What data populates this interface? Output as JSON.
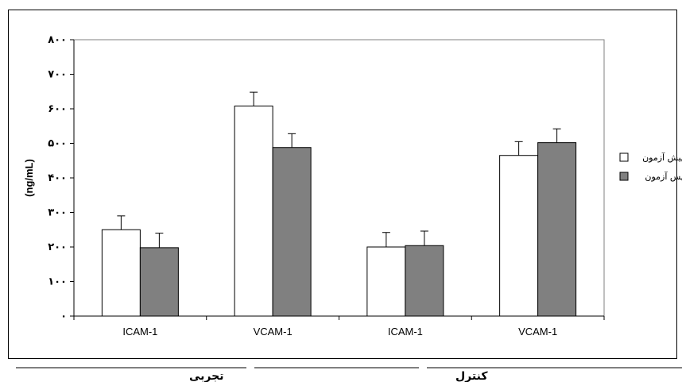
{
  "chart_data": {
    "type": "bar",
    "categories": [
      "ICAM-1",
      "VCAM-1",
      "ICAM-1",
      "VCAM-1"
    ],
    "groups": [
      {
        "label": "تجربی",
        "categories": [
          0,
          1
        ]
      },
      {
        "label": "کنترل",
        "categories": [
          2,
          3
        ]
      }
    ],
    "series": [
      {
        "name": "پیش آزمون",
        "values": [
          250,
          608,
          200,
          465
        ],
        "errors": [
          40,
          40,
          42,
          40
        ],
        "color": "#ffffff"
      },
      {
        "name": "پس آزمون",
        "values": [
          198,
          488,
          204,
          502
        ],
        "errors": [
          42,
          40,
          42,
          40
        ],
        "color": "#808080"
      }
    ],
    "ylabel": "(ng/mL)",
    "ylim": [
      0,
      800
    ],
    "yticks": [
      0,
      100,
      200,
      300,
      400,
      500,
      600,
      700,
      800
    ],
    "ytick_labels": [
      "۰",
      "۱۰۰",
      "۲۰۰",
      "۳۰۰",
      "۴۰۰",
      "۵۰۰",
      "۶۰۰",
      "۷۰۰",
      "۸۰۰"
    ],
    "grid": false,
    "legend_position": "right"
  }
}
